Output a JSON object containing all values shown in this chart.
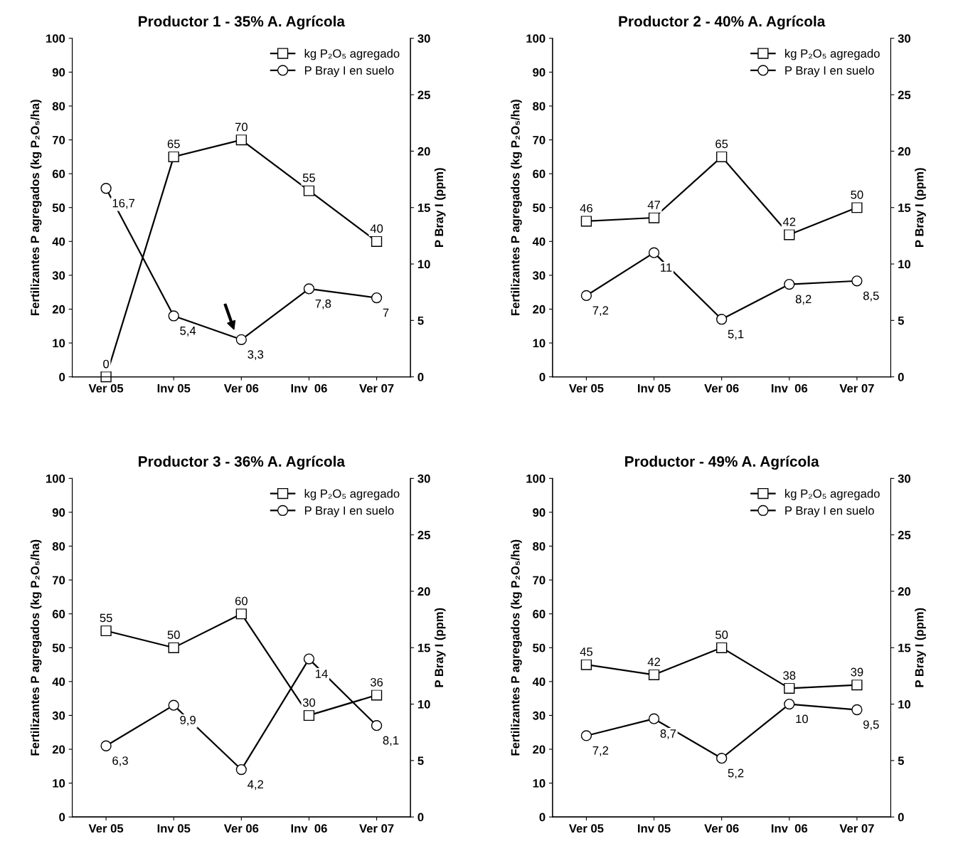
{
  "chart_data": [
    {
      "type": "line",
      "title": "Productor 1 - 35% A. Agrícola",
      "ylabel": "Fertilizantes P agregados (kg P₂O₅/ha)",
      "y2label": "P Bray I (ppm)",
      "categories": [
        "Ver 05",
        "Inv 05",
        "Ver 06",
        "Inv  06",
        "Ver 07"
      ],
      "series": [
        {
          "name": "kg P₂O₅ agregado",
          "color": "#000000",
          "marker": "square",
          "values": [
            0,
            65,
            70,
            55,
            40
          ],
          "value_labels": [
            "0",
            "65",
            "70",
            "55",
            "40"
          ]
        },
        {
          "name": "P Bray I en suelo",
          "color": "#000000",
          "marker": "circle",
          "axis": "y2",
          "values": [
            16.7,
            5.4,
            3.3,
            7.8,
            7
          ],
          "value_labels": [
            "16,7",
            "5,4",
            "3,3",
            "7,8",
            "7"
          ]
        }
      ],
      "ylim": [
        0,
        100
      ],
      "yticks": [
        0,
        10,
        20,
        30,
        40,
        50,
        60,
        70,
        80,
        90,
        100
      ],
      "y2lim": [
        0,
        30
      ],
      "y2ticks": [
        0,
        5,
        10,
        15,
        20,
        25,
        30
      ],
      "legend": "top right",
      "grid": false,
      "line_style": "solid",
      "data_labels": true
    },
    {
      "type": "line",
      "title": "Productor 2 - 40% A. Agrícola",
      "ylabel": "Fertilizantes P agregados (kg P₂O₅/ha)",
      "y2label": "P Bray I (ppm)",
      "categories": [
        "Ver 05",
        "Inv 05",
        "Ver 06",
        "Inv  06",
        "Ver 07"
      ],
      "series": [
        {
          "name": "kg P₂O₅ agregado",
          "color": "#000000",
          "marker": "square",
          "values": [
            46,
            47,
            65,
            42,
            50
          ],
          "value_labels": [
            "46",
            "47",
            "65",
            "42",
            "50"
          ]
        },
        {
          "name": "P Bray I en suelo",
          "color": "#000000",
          "marker": "circle",
          "axis": "y2",
          "values": [
            7.2,
            11,
            5.1,
            8.2,
            8.5
          ],
          "value_labels": [
            "7,2",
            "11",
            "5,1",
            "8,2",
            "8,5"
          ]
        }
      ],
      "ylim": [
        0,
        100
      ],
      "yticks": [
        0,
        10,
        20,
        30,
        40,
        50,
        60,
        70,
        80,
        90,
        100
      ],
      "y2lim": [
        0,
        30
      ],
      "y2ticks": [
        0,
        5,
        10,
        15,
        20,
        25,
        30
      ],
      "legend": "top right",
      "grid": false,
      "line_style": "solid",
      "data_labels": true
    },
    {
      "type": "line",
      "title": "Productor 3 - 36% A. Agrícola",
      "ylabel": "Fertilizantes P agregados (kg P₂O₅/ha)",
      "y2label": "P Bray I (ppm)",
      "categories": [
        "Ver 05",
        "Inv 05",
        "Ver 06",
        "Inv  06",
        "Ver 07"
      ],
      "series": [
        {
          "name": "kg P₂O₅ agregado",
          "color": "#000000",
          "marker": "square",
          "values": [
            55,
            50,
            60,
            30,
            36
          ],
          "value_labels": [
            "55",
            "50",
            "60",
            "30",
            "36"
          ]
        },
        {
          "name": "P Bray I en suelo",
          "color": "#000000",
          "marker": "circle",
          "axis": "y2",
          "values": [
            6.3,
            9.9,
            4.2,
            14,
            8.1
          ],
          "value_labels": [
            "6,3",
            "9,9",
            "4,2",
            "14",
            "8,1"
          ]
        }
      ],
      "ylim": [
        0,
        100
      ],
      "yticks": [
        0,
        10,
        20,
        30,
        40,
        50,
        60,
        70,
        80,
        90,
        100
      ],
      "y2lim": [
        0,
        30
      ],
      "y2ticks": [
        0,
        5,
        10,
        15,
        20,
        25,
        30
      ],
      "legend": "top right",
      "grid": false,
      "line_style": "solid",
      "data_labels": true
    },
    {
      "type": "line",
      "title": "Productor - 49% A. Agrícola",
      "ylabel": "Fertilizantes P agregados (kg P₂O₅/ha)",
      "y2label": "P Bray I (ppm)",
      "categories": [
        "Ver 05",
        "Inv 05",
        "Ver 06",
        "Inv  06",
        "Ver 07"
      ],
      "series": [
        {
          "name": "kg P₂O₅ agregado",
          "color": "#000000",
          "marker": "square",
          "values": [
            45,
            42,
            50,
            38,
            39
          ],
          "value_labels": [
            "45",
            "42",
            "50",
            "38",
            "39"
          ]
        },
        {
          "name": "P Bray I en suelo",
          "color": "#000000",
          "marker": "circle",
          "axis": "y2",
          "values": [
            7.2,
            8.7,
            5.2,
            10,
            9.5
          ],
          "value_labels": [
            "7,2",
            "8,7",
            "5,2",
            "10",
            "9,5"
          ]
        }
      ],
      "ylim": [
        0,
        100
      ],
      "yticks": [
        0,
        10,
        20,
        30,
        40,
        50,
        60,
        70,
        80,
        90,
        100
      ],
      "y2lim": [
        0,
        30
      ],
      "y2ticks": [
        0,
        5,
        10,
        15,
        20,
        25,
        30
      ],
      "legend": "top right",
      "grid": false,
      "line_style": "solid",
      "data_labels": true
    }
  ]
}
